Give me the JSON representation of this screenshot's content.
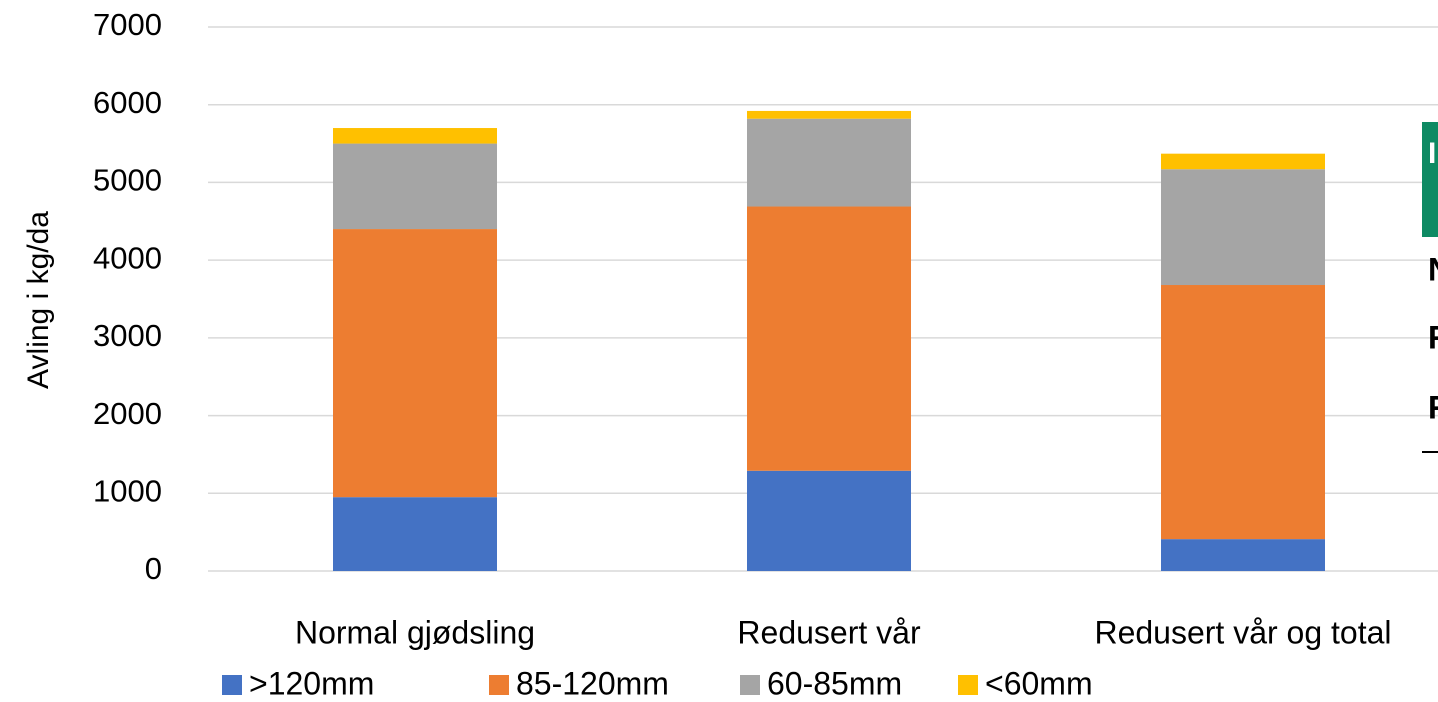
{
  "chart_data": {
    "type": "stacked_bar",
    "y_label": "Avling i kg/da",
    "categories": [
      "Normal gjødsling",
      "Redusert vår",
      "Redusert vår og total"
    ],
    "series": [
      {
        "name": ">120mm",
        "color": "#4472c4",
        "values": [
          950,
          1290,
          410
        ]
      },
      {
        "name": "85-120mm",
        "color": "#ed7d31",
        "values": [
          3450,
          3400,
          3270
        ]
      },
      {
        "name": "60-85mm",
        "color": "#a5a5a5",
        "values": [
          1100,
          1130,
          1490
        ]
      },
      {
        "name": "<60mm",
        "color": "#ffc000",
        "values": [
          200,
          100,
          200
        ]
      }
    ],
    "ylim": [
      0,
      7000
    ],
    "yticks": [
      0,
      1000,
      2000,
      3000,
      4000,
      5000,
      6000,
      7000
    ],
    "grid": true
  },
  "overlay": {
    "header": "I",
    "lines": [
      "N",
      "R",
      "R"
    ]
  }
}
